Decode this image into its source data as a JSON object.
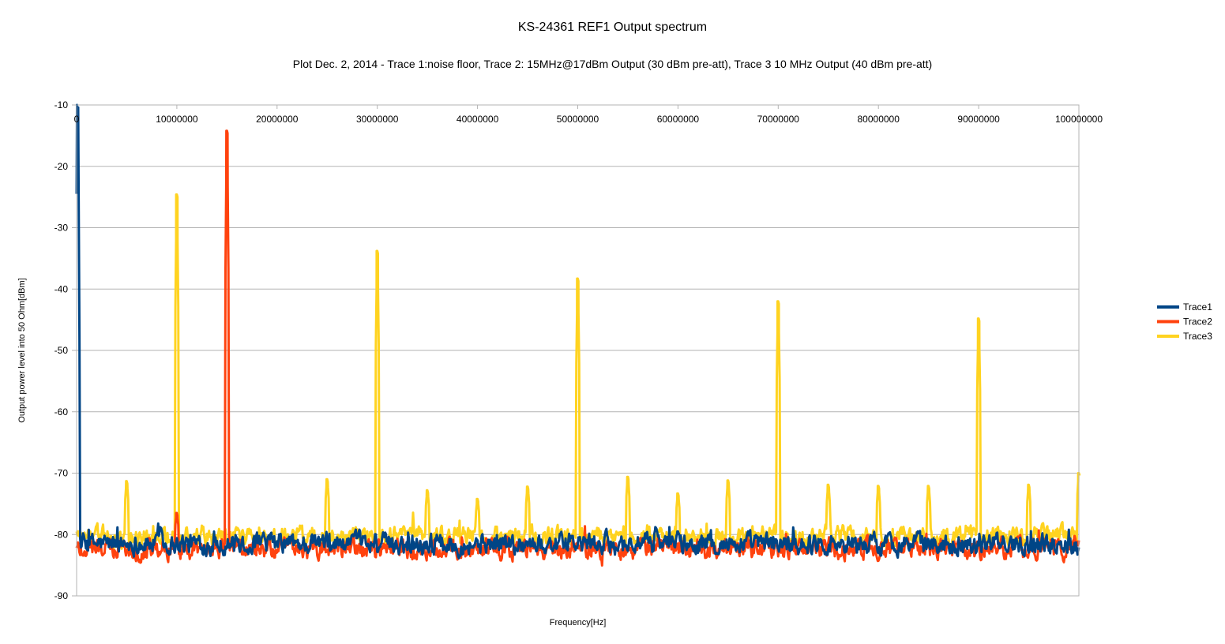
{
  "chart_data": {
    "type": "line",
    "title": "KS-24361 REF1 Output spectrum",
    "subtitle": "Plot Dec. 2, 2014 - Trace 1:noise floor, Trace 2: 15MHz@17dBm Output (30 dBm pre-att), Trace 3 10 MHz Output (40 dBm pre-att)",
    "xlabel": "Frequency[Hz]",
    "ylabel": "Output power level into 50 Ohm[dBm]",
    "xlim": [
      0,
      100000000
    ],
    "ylim": [
      -90,
      -10
    ],
    "x_ticks": [
      "0",
      "10000000",
      "20000000",
      "30000000",
      "40000000",
      "50000000",
      "60000000",
      "70000000",
      "80000000",
      "90000000",
      "100000000"
    ],
    "y_ticks": [
      "-10",
      "-20",
      "-30",
      "-40",
      "-50",
      "-60",
      "-70",
      "-80",
      "-90"
    ],
    "x_tick_values": [
      0,
      10000000,
      20000000,
      30000000,
      40000000,
      50000000,
      60000000,
      70000000,
      80000000,
      90000000,
      100000000
    ],
    "y_tick_values": [
      -10,
      -20,
      -30,
      -40,
      -50,
      -60,
      -70,
      -80,
      -90
    ],
    "grid": "horizontal",
    "x_axis_position": "top",
    "legend_position": "right",
    "series": [
      {
        "name": "Trace1",
        "color": "#004586",
        "noise_floor": -81.5,
        "peaks": [
          {
            "x": 100000,
            "y": -10
          },
          {
            "x": 8400000,
            "y": -78.8
          },
          {
            "x": 57800000,
            "y": -78.8
          },
          {
            "x": 60000000,
            "y": -79.5
          }
        ]
      },
      {
        "name": "Trace2",
        "color": "#ff420e",
        "noise_floor": -82.3,
        "peaks": [
          {
            "x": 10000000,
            "y": -76.5
          },
          {
            "x": 15000000,
            "y": -14.2
          }
        ]
      },
      {
        "name": "Trace3",
        "color": "#ffd320",
        "noise_floor": -80.3,
        "peaks": [
          {
            "x": 5000000,
            "y": -71.3
          },
          {
            "x": 10000000,
            "y": -24.6
          },
          {
            "x": 25000000,
            "y": -71.0
          },
          {
            "x": 30000000,
            "y": -33.8
          },
          {
            "x": 35000000,
            "y": -72.8
          },
          {
            "x": 40000000,
            "y": -74.2
          },
          {
            "x": 45000000,
            "y": -72.2
          },
          {
            "x": 50000000,
            "y": -38.3
          },
          {
            "x": 55000000,
            "y": -70.6
          },
          {
            "x": 60000000,
            "y": -73.3
          },
          {
            "x": 65000000,
            "y": -71.2
          },
          {
            "x": 70000000,
            "y": -42.0
          },
          {
            "x": 75000000,
            "y": -71.9
          },
          {
            "x": 80000000,
            "y": -72.1
          },
          {
            "x": 85000000,
            "y": -72.1
          },
          {
            "x": 90000000,
            "y": -44.8
          },
          {
            "x": 95000000,
            "y": -71.9
          },
          {
            "x": 100000000,
            "y": -70.0
          }
        ]
      }
    ]
  }
}
